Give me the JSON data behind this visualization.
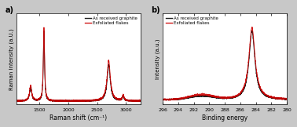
{
  "fig_width": 3.78,
  "fig_height": 1.62,
  "dpi": 100,
  "outer_bg": "#c8c8c8",
  "plot_bg": "#ffffff",
  "panel_a": {
    "label": "a)",
    "xlabel": "Raman shift (cm⁻¹)",
    "ylabel": "Raman intensity (a.U.)",
    "xlim": [
      1100,
      3250
    ],
    "xticks": [
      1500,
      2000,
      2500,
      3000
    ],
    "legend": [
      "As received graphite",
      "Exfoliated flakes"
    ],
    "line_colors": [
      "#222222",
      "#cc0000"
    ],
    "peaks_graphite": {
      "D": [
        1350,
        0.2,
        22
      ],
      "G": [
        1580,
        1.0,
        12
      ],
      "G2": [
        2700,
        0.52,
        32
      ],
      "DG": [
        2950,
        0.07,
        18
      ]
    },
    "peaks_exfoliated": {
      "D": [
        1350,
        0.22,
        22
      ],
      "G": [
        1580,
        1.05,
        13
      ],
      "G2": [
        2700,
        0.58,
        34
      ],
      "DG": [
        2950,
        0.08,
        18
      ]
    }
  },
  "panel_b": {
    "label": "b)",
    "xlabel": "Binding energy",
    "ylabel": "Intensity (a.u.)",
    "xlim": [
      296,
      280
    ],
    "xticks": [
      296,
      294,
      292,
      290,
      288,
      286,
      284,
      282,
      280
    ],
    "legend": [
      "As received graphite",
      "Exfoliated flakes"
    ],
    "line_colors": [
      "#222222",
      "#cc0000"
    ],
    "peak_graphite": [
      284.5,
      1.0,
      0.45
    ],
    "peak_exfoliated": [
      284.5,
      1.05,
      0.48
    ],
    "shoulder_graphite": [
      291.0,
      0.05,
      1.5
    ],
    "shoulder_exfoliated": [
      291.0,
      0.07,
      1.5
    ],
    "baseline": 0.02
  }
}
